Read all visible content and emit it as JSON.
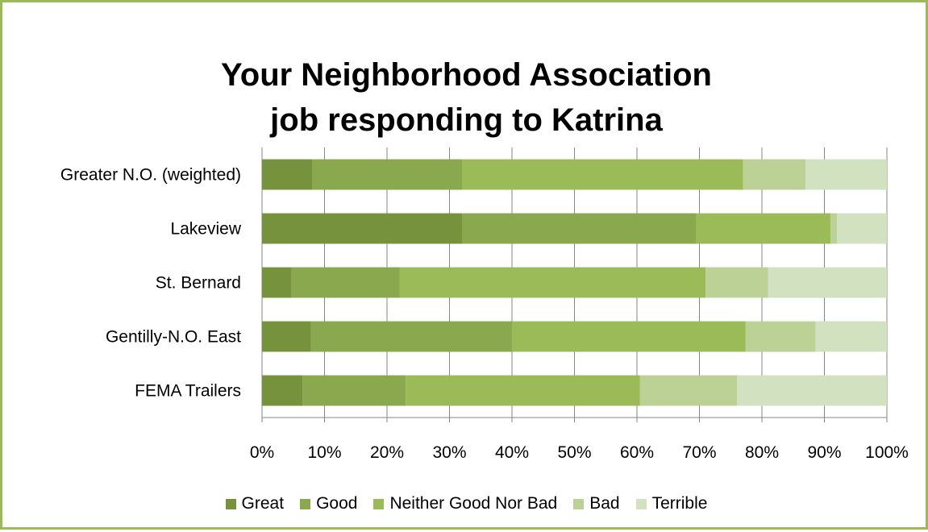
{
  "chart_data": {
    "type": "bar",
    "orientation": "horizontal",
    "stacked": "percent",
    "title": "Your Neighborhood Association job responding to Katrina",
    "title_lines": [
      "Your Neighborhood Association",
      "job responding to Katrina"
    ],
    "categories": [
      "Greater N.O. (weighted)",
      "Lakeview",
      "St. Bernard",
      "Gentilly-N.O. East",
      "FEMA Trailers"
    ],
    "series": [
      {
        "name": "Great",
        "color": "#76923c",
        "values": [
          8,
          32,
          4.7,
          7.8,
          6.5
        ]
      },
      {
        "name": "Good",
        "color": "#8aa84d",
        "values": [
          24,
          37.5,
          17.3,
          32.3,
          16.5
        ]
      },
      {
        "name": "Neither Good Nor Bad",
        "color": "#9bbb59",
        "values": [
          45,
          21.5,
          49,
          37.3,
          37.5
        ]
      },
      {
        "name": "Bad",
        "color": "#bbd196",
        "values": [
          10,
          1,
          10,
          11.2,
          15.5
        ]
      },
      {
        "name": "Terrible",
        "color": "#d2e1bf",
        "values": [
          13,
          8,
          19,
          11.4,
          24
        ]
      }
    ],
    "xaxis": {
      "ticks": [
        "0%",
        "10%",
        "20%",
        "30%",
        "40%",
        "50%",
        "60%",
        "70%",
        "80%",
        "90%",
        "100%"
      ],
      "range": [
        0,
        100
      ]
    },
    "grid": true,
    "legend_position": "bottom"
  }
}
